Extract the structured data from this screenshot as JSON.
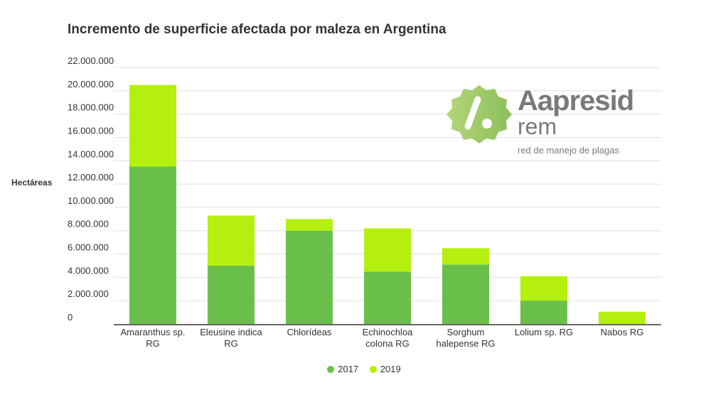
{
  "chart_data": {
    "type": "bar",
    "stacked": true,
    "title": "Incremento de superficie afectada por maleza en Argentina",
    "ylabel": "Hectáreas",
    "xlabel": "",
    "ylim": [
      0,
      22000000
    ],
    "yticks": [
      "0",
      "2.000.000",
      "4.000.000",
      "6.000.000",
      "8.000.000",
      "10.000.000",
      "12.000.000",
      "14.000.000",
      "16.000.000",
      "18.000.000",
      "20.000.000",
      "22.000.000"
    ],
    "categories": [
      [
        "Amaranthus sp.",
        "RG"
      ],
      [
        "Eleusine indica",
        "RG"
      ],
      [
        "Chlorídeas"
      ],
      [
        "Echinochloa",
        "colona RG"
      ],
      [
        "Sorghum",
        "halepense RG"
      ],
      [
        "Lolium sp. RG"
      ],
      [
        "Nabos RG"
      ]
    ],
    "series": [
      {
        "name": "2017",
        "color": "#6abf4b",
        "values": [
          13500000,
          5000000,
          8000000,
          4500000,
          5100000,
          2000000,
          0
        ]
      },
      {
        "name": "2019",
        "color": "#b5ef0f",
        "values": [
          7000000,
          4300000,
          1000000,
          3700000,
          1400000,
          2100000,
          1050000
        ]
      }
    ],
    "grid": true,
    "legend": "bottom"
  },
  "logo": {
    "main": "Aapresid",
    "sub": "rem",
    "tagline": "red de manejo de plagas"
  }
}
